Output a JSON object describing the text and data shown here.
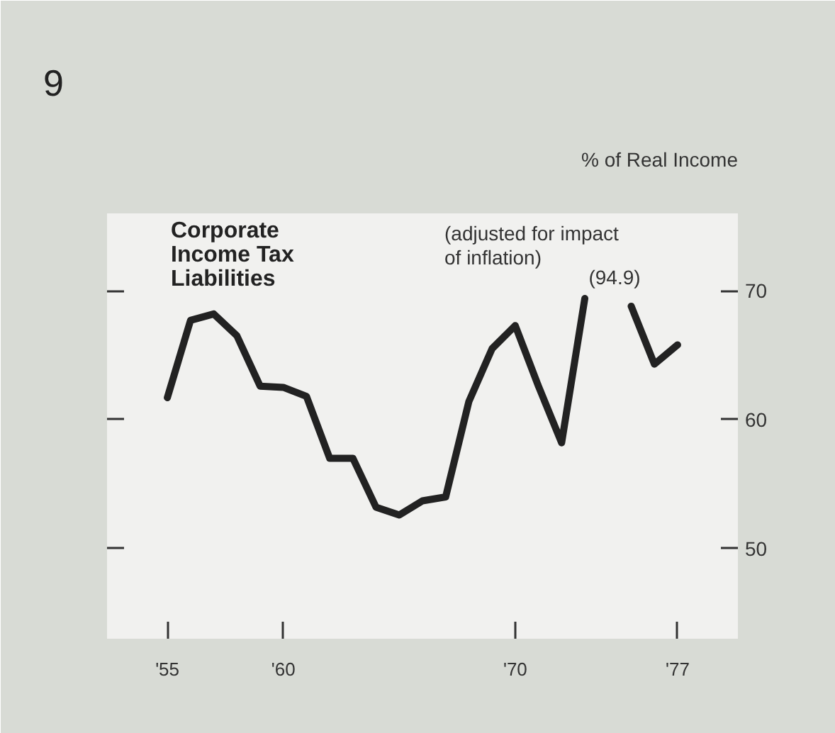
{
  "chart_data": {
    "type": "line",
    "title": "Corporate Income Tax Liabilities",
    "subtitle": "(adjusted for impact of inflation)",
    "ylabel": "% of Real Income",
    "annotations": [
      "9",
      "(94.9)"
    ],
    "x": [
      1955,
      1956,
      1957,
      1958,
      1959,
      1960,
      1961,
      1962,
      1963,
      1964,
      1965,
      1966,
      1967,
      1968,
      1969,
      1970,
      1971,
      1972,
      1973,
      1974,
      1975,
      1976,
      1977
    ],
    "series": [
      {
        "color": "#222222",
        "values": [
          61.7,
          67.7,
          68.2,
          66.5,
          62.6,
          62.5,
          61.8,
          57.0,
          57.0,
          53.2,
          52.6,
          53.7,
          54.0,
          61.4,
          65.5,
          67.3,
          62.6,
          58.2,
          69.4,
          null,
          68.8,
          64.3,
          65.8
        ]
      }
    ],
    "xlim": [
      1952.4,
      1979.6
    ],
    "ylim": [
      43,
      76
    ],
    "xticks": [
      {
        "value": 1955,
        "label": "'55"
      },
      {
        "value": 1960,
        "label": "'60"
      },
      {
        "value": 1970,
        "label": "'70"
      },
      {
        "value": 1977,
        "label": "'77"
      }
    ],
    "yticks": [
      50,
      60,
      70
    ],
    "grid": false,
    "line_style": "solid"
  }
}
